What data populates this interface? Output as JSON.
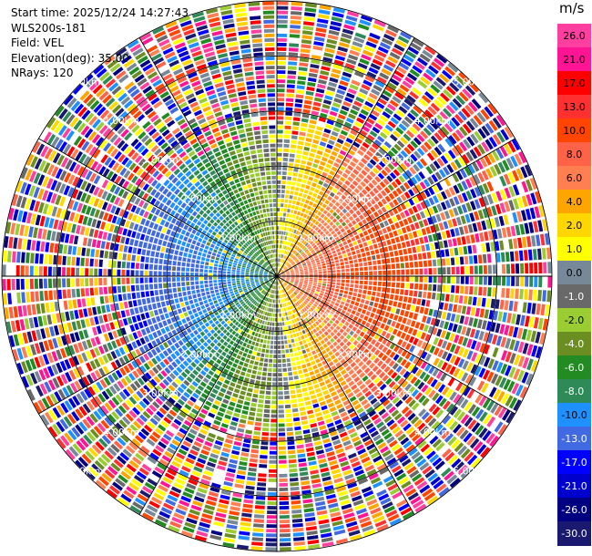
{
  "header": {
    "start_time": "Start time: 2025/12/24 14:27:43",
    "instrument": "WLS200s-181",
    "field": "Field: VEL",
    "elevation": "Elevation(deg): 35.00",
    "nrays": "NRays: 120"
  },
  "colorbar": {
    "unit": "m/s",
    "levels": [
      {
        "label": "26.0",
        "color": "#ff3fa0"
      },
      {
        "label": "21.0",
        "color": "#ff1493"
      },
      {
        "label": "17.0",
        "color": "#ff0000"
      },
      {
        "label": "13.0",
        "color": "#ff3030"
      },
      {
        "label": "10.0",
        "color": "#ff4500"
      },
      {
        "label": "8.0",
        "color": "#ff6347"
      },
      {
        "label": "6.0",
        "color": "#ff7f50"
      },
      {
        "label": "4.0",
        "color": "#ffa500"
      },
      {
        "label": "2.0",
        "color": "#ffd700"
      },
      {
        "label": "1.0",
        "color": "#ffff00"
      },
      {
        "label": "0.0",
        "color": "#778899"
      },
      {
        "label": "-1.0",
        "color": "#696969"
      },
      {
        "label": "-2.0",
        "color": "#9acd32"
      },
      {
        "label": "-4.0",
        "color": "#6b8e23"
      },
      {
        "label": "-6.0",
        "color": "#228b22"
      },
      {
        "label": "-8.0",
        "color": "#2e8b57"
      },
      {
        "label": "-10.0",
        "color": "#1e90ff"
      },
      {
        "label": "-13.0",
        "color": "#4169e1"
      },
      {
        "label": "-17.0",
        "color": "#0000ff"
      },
      {
        "label": "-21.0",
        "color": "#0000cd"
      },
      {
        "label": "-26.0",
        "color": "#000080"
      },
      {
        "label": "-30.0",
        "color": "#191970"
      }
    ]
  },
  "chart_data": {
    "type": "heatmap",
    "projection": "polar-ppi",
    "field": "VEL",
    "rays": 120,
    "range_rings_km": [
      1,
      2,
      3,
      4,
      5
    ],
    "range_ring_labels": [
      "1.00km",
      "2.00km",
      "3.00km",
      "4.00km",
      "5.00km"
    ],
    "spoke_azimuths_deg": [
      0,
      30,
      60,
      90,
      120,
      150,
      180,
      210,
      240,
      270,
      300,
      330
    ],
    "valid_data_range_km": 2.7,
    "max_range_km": 5.0,
    "pattern": "dipole",
    "approach_azimuth_deg": 270,
    "recede_azimuth_deg": 90,
    "peak_velocity_ms": 13.0,
    "vmin": -30.0,
    "vmax": 30.0
  }
}
